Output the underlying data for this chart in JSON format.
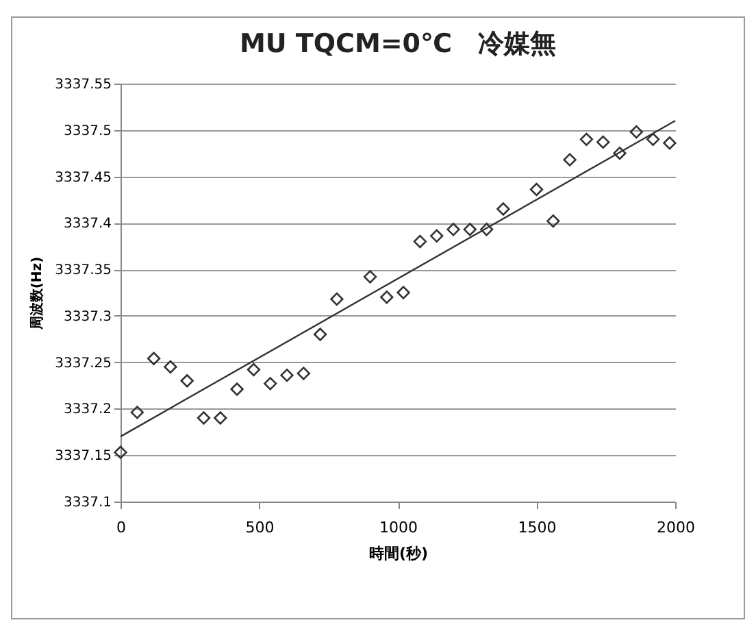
{
  "chart_data": {
    "type": "scatter",
    "title": "MU TQCM=0℃　冷媒無",
    "xlabel": "時間(秒)",
    "ylabel": "周波数(Hz)",
    "xlim": [
      0,
      2000
    ],
    "xticks": [
      0,
      500,
      1000,
      1500,
      2000
    ],
    "ylim": [
      3337.1,
      3337.55
    ],
    "yticks": [
      3337.1,
      3337.15,
      3337.2,
      3337.25,
      3337.3,
      3337.35,
      3337.4,
      3337.45,
      3337.5,
      3337.55
    ],
    "grid": "y",
    "marker": "diamond",
    "series": [
      {
        "color": "#333333",
        "x": [
          0,
          60,
          120,
          180,
          240,
          300,
          360,
          420,
          480,
          540,
          600,
          660,
          720,
          780,
          900,
          960,
          1020,
          1080,
          1140,
          1200,
          1260,
          1320,
          1380,
          1500,
          1560,
          1620,
          1680,
          1740,
          1800,
          1860,
          1920,
          1980
        ],
        "values": [
          3337.153,
          3337.196,
          3337.254,
          3337.245,
          3337.23,
          3337.19,
          3337.19,
          3337.221,
          3337.242,
          3337.227,
          3337.236,
          3337.238,
          3337.28,
          3337.318,
          3337.342,
          3337.32,
          3337.325,
          3337.38,
          3337.386,
          3337.393,
          3337.393,
          3337.393,
          3337.415,
          3337.436,
          3337.402,
          3337.468,
          3337.49,
          3337.487,
          3337.475,
          3337.498,
          3337.49,
          3337.486
        ]
      },
      {
        "type": "line",
        "marker": "none",
        "color": "#333333",
        "x": [
          0,
          2000
        ],
        "values": [
          3337.17,
          3337.51
        ]
      }
    ]
  }
}
